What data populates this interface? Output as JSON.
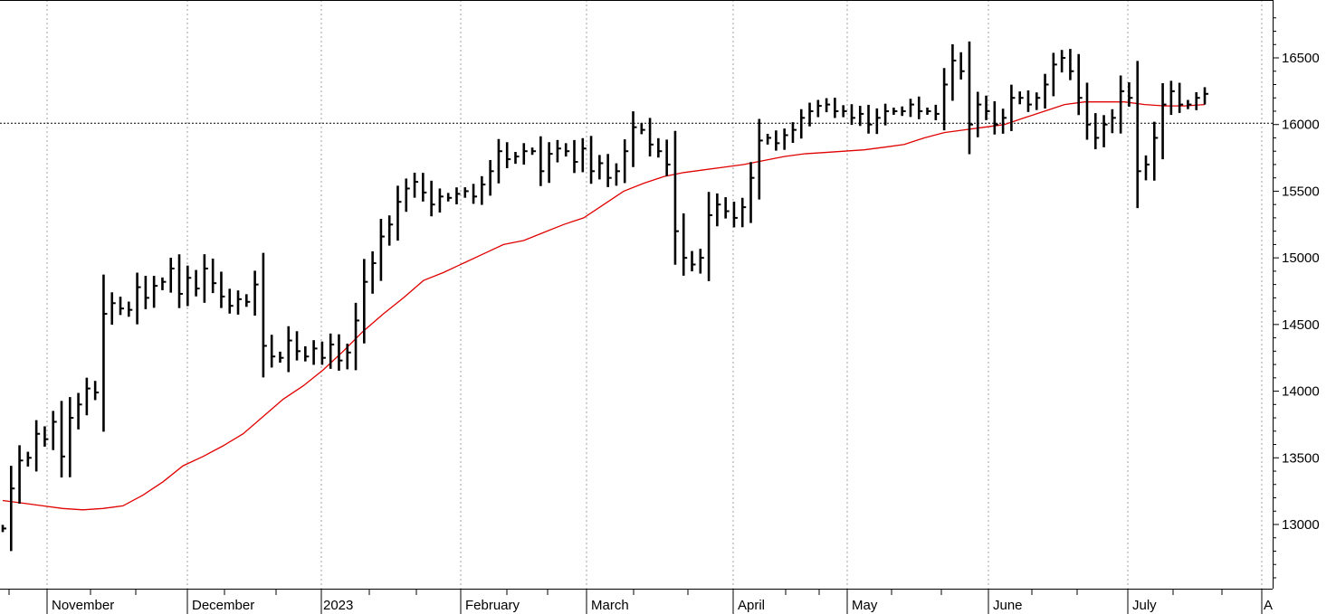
{
  "chart_data": {
    "type": "ohlc",
    "title": "",
    "xlabel": "",
    "ylabel": "",
    "ylim": [
      12500,
      16900
    ],
    "y_ticks": [
      "13000",
      "13500",
      "14000",
      "14500",
      "15000",
      "15500",
      "16000",
      "16500"
    ],
    "x_labels": [
      "November",
      "December",
      "2023",
      "February",
      "March",
      "April",
      "May",
      "June",
      "July",
      "A"
    ],
    "reference_line": 16010,
    "grid": "vertical dotted at month starts",
    "colors": {
      "bars": "#000000",
      "moving_average": "#e00000",
      "grid": "#a0a0a0"
    },
    "series": [
      {
        "values": [
          12970,
          13270,
          13480,
          13500,
          13680,
          13640,
          13770,
          13510,
          13800,
          13900,
          14020,
          13990,
          14580,
          14660,
          14620,
          14610,
          14780,
          14700,
          14790,
          14820,
          14920,
          14730,
          14850,
          14770,
          14920,
          14810,
          14710,
          14640,
          14690,
          14670,
          14800,
          14340,
          14260,
          14250,
          14380,
          14300,
          14260,
          14320,
          14250,
          14350,
          14230,
          14290,
          14530,
          14820,
          14960,
          15160,
          15250,
          15420,
          15520,
          15570,
          15490,
          15400,
          15460,
          15450,
          15480,
          15500,
          15460,
          15550,
          15650,
          15800,
          15740,
          15760,
          15800,
          15800,
          15650,
          15780,
          15820,
          15800,
          15720,
          15820,
          15650,
          15710,
          15600,
          15650,
          15800,
          15980,
          15960,
          15850,
          15800,
          15700,
          15200,
          15000,
          14950,
          15000,
          15320,
          15400,
          15350,
          15300,
          15380,
          15600,
          15880,
          15900,
          15860,
          15920,
          15960,
          16050,
          16100,
          16140,
          16150,
          16100,
          16100,
          16050,
          16080,
          16000,
          16050,
          16100,
          16100,
          16100,
          16150,
          16100,
          16100,
          16080,
          16300,
          16480,
          16400,
          16000,
          16150,
          16100,
          16000,
          16050,
          16200,
          16200,
          16150,
          16200,
          16300,
          16450,
          16500,
          16400,
          16200,
          16000,
          15900,
          16000,
          16050,
          16250,
          16200,
          15650,
          15700,
          15900,
          16150,
          16250,
          16150,
          16150,
          16200,
          16230
        ]
      },
      {
        "name": "",
        "values": [
          13180,
          13160,
          13140,
          13120,
          13110,
          13120,
          13140,
          13220,
          13320,
          13440,
          13510,
          13590,
          13680,
          13810,
          13940,
          14040,
          14160,
          14300,
          14450,
          14580,
          14700,
          14830,
          14890,
          14960,
          15030,
          15100,
          15130,
          15190,
          15250,
          15300,
          15400,
          15500,
          15560,
          15610,
          15640,
          15660,
          15680,
          15700,
          15730,
          15760,
          15780,
          15790,
          15800,
          15810,
          15830,
          15850,
          15900,
          15940,
          15960,
          15980,
          16000,
          16050,
          16100,
          16150,
          16170,
          16170,
          16170,
          16150,
          16140,
          16140,
          16150
        ]
      }
    ]
  }
}
